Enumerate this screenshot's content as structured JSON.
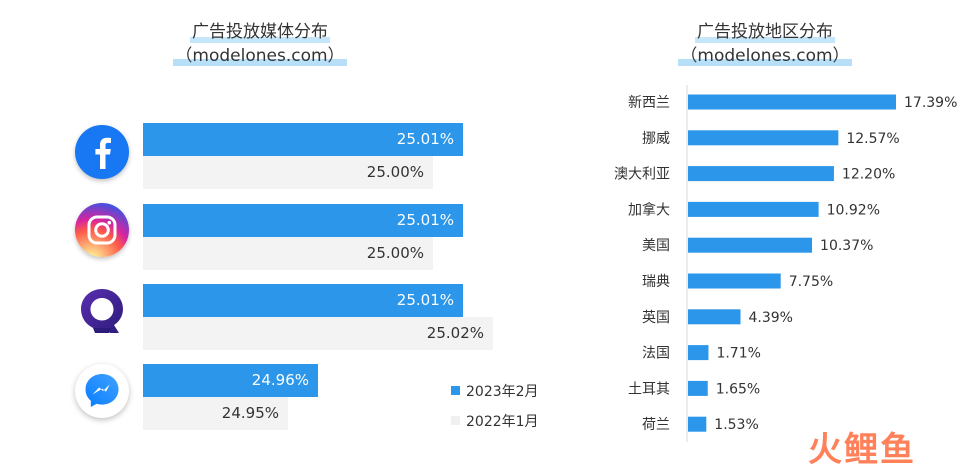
{
  "chart_data": [
    {
      "type": "bar",
      "title": "广告投放媒体分布",
      "subtitle": "（modelones.com）",
      "categories": [
        "Facebook",
        "Instagram",
        "Q",
        "Messenger"
      ],
      "series": [
        {
          "name": "2023年2月",
          "values": [
            25.01,
            25.01,
            25.01,
            24.96
          ],
          "color": "#2b96ea"
        },
        {
          "name": "2022年1月",
          "values": [
            25.0,
            25.0,
            25.02,
            24.95
          ],
          "color": "#f3f3f3"
        }
      ],
      "value_labels": {
        "series0": [
          "25.01%",
          "25.01%",
          "25.01%",
          "24.96%"
        ],
        "series1": [
          "25.00%",
          "25.00%",
          "25.02%",
          "24.95%"
        ]
      },
      "legend": "bottom-right"
    },
    {
      "type": "bar",
      "orientation": "horizontal",
      "title": "广告投放地区分布",
      "subtitle": "（modelones.com）",
      "categories": [
        "新西兰",
        "挪威",
        "澳大利亚",
        "加拿大",
        "美国",
        "瑞典",
        "英国",
        "法国",
        "土耳其",
        "荷兰"
      ],
      "values": [
        17.39,
        12.57,
        12.2,
        10.92,
        10.37,
        7.75,
        4.39,
        1.71,
        1.65,
        1.53
      ],
      "value_labels": [
        "17.39%",
        "12.57%",
        "12.20%",
        "10.92%",
        "10.37%",
        "7.75%",
        "4.39%",
        "1.71%",
        "1.65%",
        "1.53%"
      ],
      "color": "#2b96ea"
    }
  ],
  "icons": {
    "logos": [
      "facebook-logo-icon",
      "instagram-logo-icon",
      "q-logo-icon",
      "messenger-logo-icon"
    ]
  },
  "watermark": "火鲤鱼"
}
